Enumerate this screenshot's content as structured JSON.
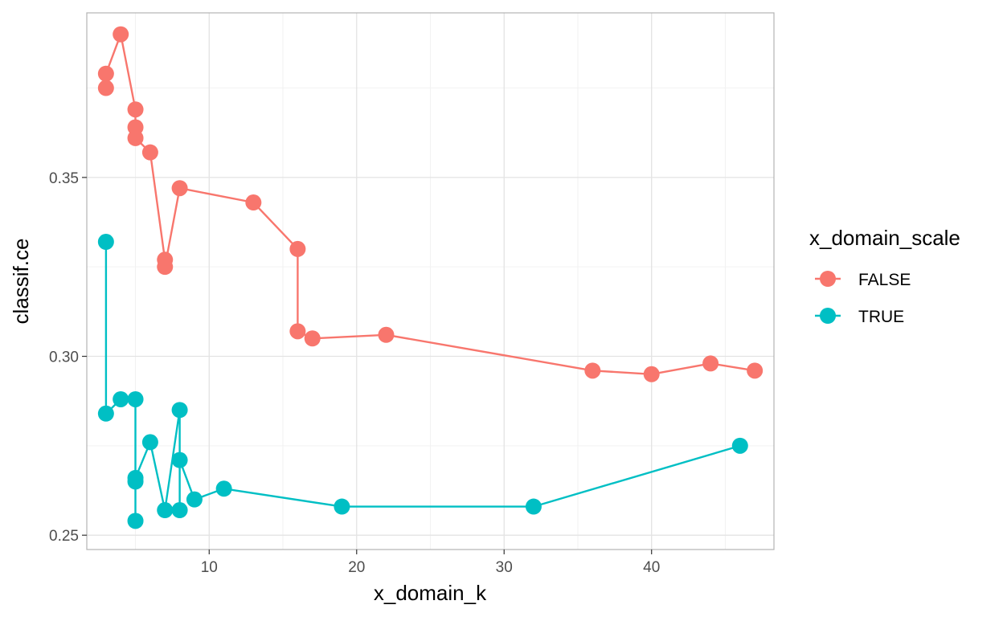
{
  "chart_data": {
    "type": "line",
    "xlabel": "x_domain_k",
    "ylabel": "classif.ce",
    "xlim": [
      1.7,
      48.3
    ],
    "ylim": [
      0.246,
      0.396
    ],
    "x_ticks": [
      10,
      20,
      30,
      40
    ],
    "x_tick_labels": [
      "10",
      "20",
      "30",
      "40"
    ],
    "y_ticks": [
      0.25,
      0.3,
      0.35
    ],
    "y_tick_labels": [
      "0.25",
      "0.30",
      "0.35"
    ],
    "grid": true,
    "legend": {
      "title": "x_domain_scale",
      "position": "right"
    },
    "series": [
      {
        "name": "FALSE",
        "color": "#F8766D",
        "points": [
          [
            3,
            0.375
          ],
          [
            3,
            0.379
          ],
          [
            4,
            0.39
          ],
          [
            5,
            0.369
          ],
          [
            5,
            0.364
          ],
          [
            5,
            0.361
          ],
          [
            6,
            0.357
          ],
          [
            7,
            0.327
          ],
          [
            7,
            0.325
          ],
          [
            8,
            0.347
          ],
          [
            13,
            0.343
          ],
          [
            16,
            0.33
          ],
          [
            16,
            0.307
          ],
          [
            17,
            0.305
          ],
          [
            22,
            0.306
          ],
          [
            36,
            0.296
          ],
          [
            40,
            0.295
          ],
          [
            44,
            0.298
          ],
          [
            47,
            0.296
          ]
        ]
      },
      {
        "name": "TRUE",
        "color": "#00BFC4",
        "points": [
          [
            3,
            0.332
          ],
          [
            3,
            0.284
          ],
          [
            4,
            0.288
          ],
          [
            5,
            0.288
          ],
          [
            5,
            0.254
          ],
          [
            5,
            0.265
          ],
          [
            5,
            0.266
          ],
          [
            6,
            0.276
          ],
          [
            7,
            0.257
          ],
          [
            8,
            0.285
          ],
          [
            8,
            0.257
          ],
          [
            8,
            0.271
          ],
          [
            9,
            0.26
          ],
          [
            11,
            0.263
          ],
          [
            19,
            0.258
          ],
          [
            32,
            0.258
          ],
          [
            46,
            0.275
          ]
        ]
      }
    ]
  }
}
